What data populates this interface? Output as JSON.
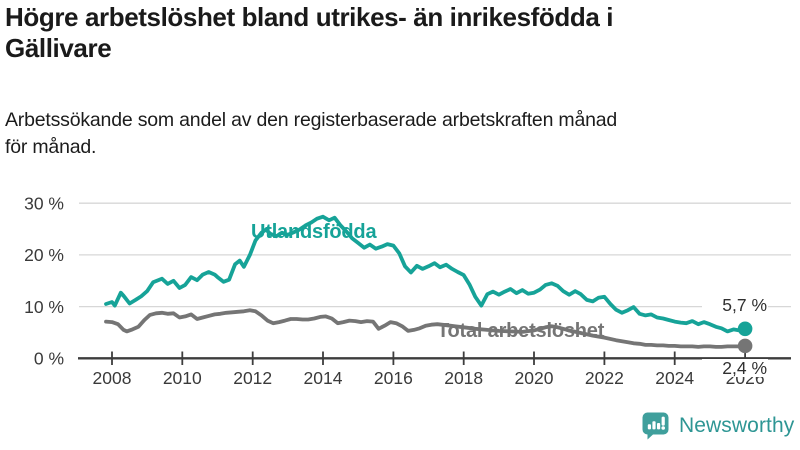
{
  "header": {
    "title_lines": [
      "Högre arbetslöshet bland utrikes- än inrikesfödda i",
      "Gällivare"
    ],
    "subtitle_lines": [
      "Arbetssökande som andel av den registerbaserade arbetskraften månad",
      "för månad."
    ]
  },
  "footer": {
    "brand": "Newsworthy",
    "brand_color": "#2e9694",
    "brand_icon": "bar-chart-speech-bubble-icon"
  },
  "chart_data": {
    "type": "line",
    "title": "Högre arbetslöshet bland utrikes- än inrikesfödda i Gällivare",
    "subtitle": "Arbetssökande som andel av den registerbaserade arbetskraften månad för månad.",
    "xlabel": "",
    "ylabel": "",
    "xlim": [
      2007.7,
      2027.3
    ],
    "ylim": [
      0,
      32
    ],
    "grid": "horizontal-only",
    "legend_position": "inline-labels-on-lines",
    "x_ticks": [
      "2008",
      "2010",
      "2012",
      "2014",
      "2016",
      "2018",
      "2020",
      "2022",
      "2024",
      "2026"
    ],
    "y_ticks": [
      "0 %",
      "10 %",
      "20 %",
      "30 %"
    ],
    "y_tick_values": [
      0,
      10,
      20,
      30
    ],
    "grid_color": "#d7d7d7",
    "axis_color": "#3d3d3d",
    "axis_text_color": "#3a3a3a",
    "series": [
      {
        "id": "utlandsfodda",
        "name": "Utlandsfödda",
        "color": "#16a398",
        "end_label": "5,7 %",
        "end_value": 5.7,
        "points": [
          [
            2007.83,
            10.5
          ],
          [
            2008.0,
            10.9
          ],
          [
            2008.08,
            10.2
          ],
          [
            2008.25,
            12.7
          ],
          [
            2008.33,
            12.1
          ],
          [
            2008.5,
            10.6
          ],
          [
            2008.67,
            11.3
          ],
          [
            2008.83,
            12.0
          ],
          [
            2009.0,
            13.0
          ],
          [
            2009.17,
            14.7
          ],
          [
            2009.42,
            15.4
          ],
          [
            2009.58,
            14.4
          ],
          [
            2009.75,
            15.0
          ],
          [
            2009.92,
            13.6
          ],
          [
            2010.08,
            14.2
          ],
          [
            2010.25,
            15.7
          ],
          [
            2010.42,
            15.1
          ],
          [
            2010.58,
            16.2
          ],
          [
            2010.75,
            16.7
          ],
          [
            2010.92,
            16.2
          ],
          [
            2011.0,
            15.7
          ],
          [
            2011.17,
            14.8
          ],
          [
            2011.33,
            15.2
          ],
          [
            2011.5,
            18.2
          ],
          [
            2011.63,
            18.9
          ],
          [
            2011.75,
            17.7
          ],
          [
            2011.92,
            20.0
          ],
          [
            2012.08,
            22.8
          ],
          [
            2012.25,
            24.3
          ],
          [
            2012.38,
            24.9
          ],
          [
            2012.5,
            24.1
          ],
          [
            2012.67,
            23.6
          ],
          [
            2012.83,
            24.3
          ],
          [
            2013.0,
            23.9
          ],
          [
            2013.17,
            24.4
          ],
          [
            2013.33,
            24.9
          ],
          [
            2013.5,
            25.7
          ],
          [
            2013.67,
            26.3
          ],
          [
            2013.83,
            27.0
          ],
          [
            2014.0,
            27.4
          ],
          [
            2014.17,
            26.7
          ],
          [
            2014.33,
            27.2
          ],
          [
            2014.5,
            25.7
          ],
          [
            2014.67,
            24.5
          ],
          [
            2014.83,
            23.2
          ],
          [
            2015.0,
            22.3
          ],
          [
            2015.17,
            21.4
          ],
          [
            2015.33,
            22.0
          ],
          [
            2015.5,
            21.2
          ],
          [
            2015.67,
            21.6
          ],
          [
            2015.83,
            22.1
          ],
          [
            2016.0,
            21.8
          ],
          [
            2016.17,
            20.3
          ],
          [
            2016.33,
            17.8
          ],
          [
            2016.5,
            16.6
          ],
          [
            2016.67,
            17.9
          ],
          [
            2016.83,
            17.3
          ],
          [
            2017.0,
            17.8
          ],
          [
            2017.17,
            18.4
          ],
          [
            2017.33,
            17.6
          ],
          [
            2017.5,
            18.1
          ],
          [
            2017.67,
            17.3
          ],
          [
            2017.83,
            16.7
          ],
          [
            2018.0,
            16.1
          ],
          [
            2018.17,
            14.2
          ],
          [
            2018.33,
            11.9
          ],
          [
            2018.5,
            10.2
          ],
          [
            2018.67,
            12.4
          ],
          [
            2018.83,
            12.9
          ],
          [
            2019.0,
            12.3
          ],
          [
            2019.17,
            12.9
          ],
          [
            2019.33,
            13.4
          ],
          [
            2019.5,
            12.6
          ],
          [
            2019.67,
            13.2
          ],
          [
            2019.83,
            12.5
          ],
          [
            2020.0,
            12.7
          ],
          [
            2020.17,
            13.3
          ],
          [
            2020.33,
            14.2
          ],
          [
            2020.5,
            14.5
          ],
          [
            2020.67,
            14.0
          ],
          [
            2020.83,
            13.0
          ],
          [
            2021.0,
            12.3
          ],
          [
            2021.17,
            13.0
          ],
          [
            2021.33,
            12.4
          ],
          [
            2021.5,
            11.3
          ],
          [
            2021.67,
            11.0
          ],
          [
            2021.83,
            11.7
          ],
          [
            2022.0,
            11.9
          ],
          [
            2022.17,
            10.5
          ],
          [
            2022.33,
            9.4
          ],
          [
            2022.5,
            8.8
          ],
          [
            2022.67,
            9.3
          ],
          [
            2022.83,
            9.9
          ],
          [
            2023.0,
            8.6
          ],
          [
            2023.17,
            8.3
          ],
          [
            2023.33,
            8.5
          ],
          [
            2023.5,
            7.9
          ],
          [
            2023.67,
            7.7
          ],
          [
            2023.83,
            7.4
          ],
          [
            2024.0,
            7.1
          ],
          [
            2024.17,
            6.9
          ],
          [
            2024.33,
            6.8
          ],
          [
            2024.5,
            7.2
          ],
          [
            2024.67,
            6.6
          ],
          [
            2024.83,
            7.0
          ],
          [
            2025.0,
            6.6
          ],
          [
            2025.17,
            6.1
          ],
          [
            2025.33,
            5.8
          ],
          [
            2025.5,
            5.2
          ],
          [
            2025.67,
            5.6
          ],
          [
            2025.83,
            5.4
          ],
          [
            2026.0,
            5.7
          ]
        ]
      },
      {
        "id": "total",
        "name": "Total arbetslöshet",
        "color": "#757575",
        "end_label": "2,4 %",
        "end_value": 2.4,
        "points": [
          [
            2007.83,
            7.1
          ],
          [
            2008.0,
            7.0
          ],
          [
            2008.17,
            6.6
          ],
          [
            2008.33,
            5.5
          ],
          [
            2008.42,
            5.2
          ],
          [
            2008.58,
            5.6
          ],
          [
            2008.75,
            6.1
          ],
          [
            2008.92,
            7.4
          ],
          [
            2009.08,
            8.4
          ],
          [
            2009.25,
            8.7
          ],
          [
            2009.42,
            8.8
          ],
          [
            2009.58,
            8.6
          ],
          [
            2009.75,
            8.7
          ],
          [
            2009.92,
            7.9
          ],
          [
            2010.08,
            8.1
          ],
          [
            2010.25,
            8.5
          ],
          [
            2010.42,
            7.6
          ],
          [
            2010.58,
            7.9
          ],
          [
            2010.75,
            8.2
          ],
          [
            2010.92,
            8.5
          ],
          [
            2011.08,
            8.6
          ],
          [
            2011.25,
            8.8
          ],
          [
            2011.42,
            8.9
          ],
          [
            2011.58,
            9.0
          ],
          [
            2011.75,
            9.1
          ],
          [
            2011.92,
            9.3
          ],
          [
            2012.08,
            9.1
          ],
          [
            2012.25,
            8.3
          ],
          [
            2012.42,
            7.3
          ],
          [
            2012.58,
            6.8
          ],
          [
            2012.75,
            7.0
          ],
          [
            2012.92,
            7.3
          ],
          [
            2013.08,
            7.6
          ],
          [
            2013.25,
            7.6
          ],
          [
            2013.42,
            7.5
          ],
          [
            2013.58,
            7.5
          ],
          [
            2013.75,
            7.7
          ],
          [
            2013.92,
            8.0
          ],
          [
            2014.08,
            8.1
          ],
          [
            2014.25,
            7.7
          ],
          [
            2014.42,
            6.8
          ],
          [
            2014.58,
            7.0
          ],
          [
            2014.75,
            7.3
          ],
          [
            2014.92,
            7.2
          ],
          [
            2015.08,
            7.0
          ],
          [
            2015.25,
            7.2
          ],
          [
            2015.42,
            7.1
          ],
          [
            2015.58,
            5.7
          ],
          [
            2015.75,
            6.3
          ],
          [
            2015.92,
            7.0
          ],
          [
            2016.08,
            6.8
          ],
          [
            2016.25,
            6.2
          ],
          [
            2016.42,
            5.3
          ],
          [
            2016.58,
            5.5
          ],
          [
            2016.75,
            5.8
          ],
          [
            2016.92,
            6.3
          ],
          [
            2017.08,
            6.5
          ],
          [
            2017.25,
            6.6
          ],
          [
            2017.5,
            6.4
          ],
          [
            2017.75,
            6.2
          ],
          [
            2018.0,
            6.0
          ],
          [
            2018.33,
            5.7
          ],
          [
            2018.67,
            5.5
          ],
          [
            2019.0,
            5.3
          ],
          [
            2019.33,
            5.2
          ],
          [
            2019.67,
            5.1
          ],
          [
            2020.0,
            5.4
          ],
          [
            2020.33,
            6.0
          ],
          [
            2020.5,
            6.2
          ],
          [
            2020.67,
            6.0
          ],
          [
            2021.0,
            5.4
          ],
          [
            2021.33,
            4.9
          ],
          [
            2021.67,
            4.4
          ],
          [
            2022.0,
            4.0
          ],
          [
            2022.33,
            3.5
          ],
          [
            2022.67,
            3.1
          ],
          [
            2022.83,
            2.9
          ],
          [
            2023.0,
            2.8
          ],
          [
            2023.17,
            2.6
          ],
          [
            2023.33,
            2.6
          ],
          [
            2023.5,
            2.5
          ],
          [
            2023.67,
            2.5
          ],
          [
            2023.83,
            2.4
          ],
          [
            2024.0,
            2.4
          ],
          [
            2024.17,
            2.3
          ],
          [
            2024.33,
            2.3
          ],
          [
            2024.5,
            2.3
          ],
          [
            2024.67,
            2.2
          ],
          [
            2024.83,
            2.3
          ],
          [
            2025.0,
            2.3
          ],
          [
            2025.17,
            2.2
          ],
          [
            2025.33,
            2.2
          ],
          [
            2025.5,
            2.3
          ],
          [
            2025.67,
            2.3
          ],
          [
            2025.83,
            2.3
          ],
          [
            2026.0,
            2.4
          ]
        ]
      }
    ]
  }
}
